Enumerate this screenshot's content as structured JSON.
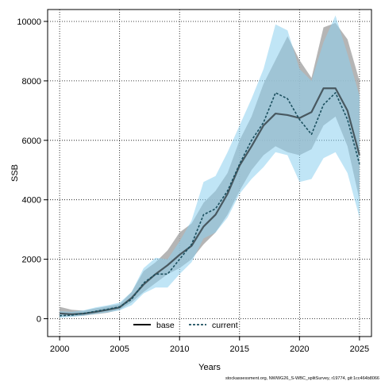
{
  "chart_data": {
    "type": "line",
    "xlabel": "Years",
    "ylabel": "SSB",
    "xlim": [
      1999,
      2026
    ],
    "ylim": [
      -600,
      10400
    ],
    "xticks": [
      2000,
      2005,
      2010,
      2015,
      2020,
      2025
    ],
    "yticks": [
      0,
      2000,
      4000,
      6000,
      8000,
      10000
    ],
    "grid": true,
    "legend_position": "bottom",
    "footer": "stockassessment.org, NWWG26_S-WBC_splitSurvey, r19774, git:1cc464b8066",
    "colors": {
      "base_line": "#000000",
      "base_band": "#a8a8a8",
      "current_line": "#1b4f5e",
      "current_band": "#8ccfee"
    },
    "series": [
      {
        "name": "base",
        "style": "solid",
        "x": [
          2000,
          2001,
          2002,
          2003,
          2004,
          2005,
          2006,
          2007,
          2008,
          2009,
          2010,
          2011,
          2012,
          2013,
          2014,
          2015,
          2016,
          2017,
          2018,
          2019,
          2020,
          2021,
          2022,
          2023,
          2024,
          2025
        ],
        "y": [
          180,
          150,
          170,
          230,
          300,
          380,
          700,
          1150,
          1500,
          1800,
          2150,
          2450,
          3100,
          3500,
          4200,
          5150,
          5800,
          6500,
          6900,
          6850,
          6750,
          6950,
          7750,
          7750,
          7000,
          5500
        ],
        "lower": [
          80,
          80,
          100,
          150,
          200,
          300,
          550,
          900,
          1200,
          1500,
          1700,
          2000,
          2500,
          2900,
          3500,
          4300,
          5000,
          5500,
          5800,
          5600,
          5500,
          5700,
          6500,
          6800,
          5800,
          4000
        ],
        "upper": [
          400,
          300,
          270,
          350,
          420,
          490,
          900,
          1600,
          1900,
          2300,
          2900,
          3200,
          3900,
          4300,
          4900,
          6000,
          6800,
          7900,
          8700,
          9500,
          8700,
          8100,
          9800,
          9950,
          9400,
          8000
        ]
      },
      {
        "name": "current",
        "style": "dashed",
        "x": [
          2000,
          2001,
          2002,
          2003,
          2004,
          2005,
          2006,
          2007,
          2008,
          2009,
          2010,
          2011,
          2012,
          2013,
          2014,
          2015,
          2016,
          2017,
          2018,
          2019,
          2020,
          2021,
          2022,
          2023,
          2024,
          2025
        ],
        "y": [
          100,
          120,
          180,
          250,
          320,
          400,
          650,
          1200,
          1500,
          1500,
          2000,
          2500,
          3500,
          3700,
          4300,
          5200,
          6000,
          6600,
          7600,
          7400,
          6700,
          6200,
          7200,
          7600,
          6700,
          5200
        ],
        "lower": [
          30,
          60,
          100,
          160,
          210,
          280,
          450,
          850,
          1050,
          1050,
          1500,
          1900,
          2700,
          2900,
          3400,
          4200,
          4700,
          5100,
          5600,
          5500,
          4600,
          4700,
          5400,
          5600,
          4900,
          3400
        ],
        "upper": [
          250,
          230,
          280,
          380,
          450,
          540,
          900,
          1700,
          2050,
          2000,
          2600,
          3300,
          4600,
          4800,
          5600,
          6500,
          7400,
          8400,
          9900,
          9700,
          8400,
          8000,
          9300,
          10200,
          8900,
          7500
        ]
      }
    ]
  }
}
